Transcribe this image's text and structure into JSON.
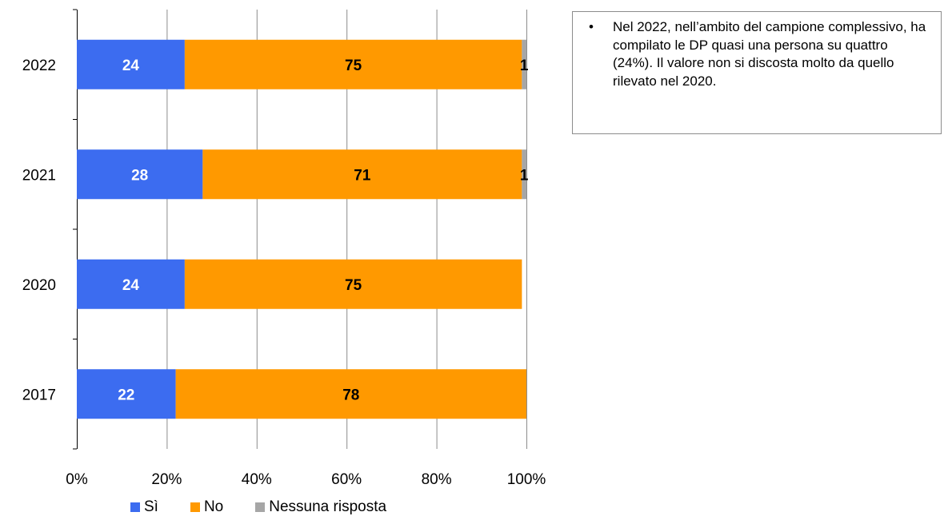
{
  "chart_data": {
    "type": "bar",
    "orientation": "horizontal",
    "stacked": true,
    "categories": [
      "2022",
      "2021",
      "2020",
      "2017"
    ],
    "series": [
      {
        "name": "Sì",
        "values": [
          24,
          28,
          24,
          22
        ],
        "labels": [
          "24",
          "28",
          "24",
          "22"
        ],
        "color": "#3c6cf0",
        "label_color": "#ffffff"
      },
      {
        "name": "No",
        "values": [
          75,
          71,
          75,
          78
        ],
        "labels": [
          "75",
          "71",
          "75",
          "78"
        ],
        "color": "#ff9900",
        "label_color": "#000000"
      },
      {
        "name": "Nessuna risposta",
        "values": [
          1,
          1,
          0,
          0
        ],
        "labels": [
          "1",
          "1",
          "",
          ""
        ],
        "color": "#a6a6a6",
        "label_color": "#000000"
      }
    ],
    "x_ticks": [
      "0%",
      "20%",
      "40%",
      "60%",
      "80%",
      "100%"
    ],
    "xlim": [
      0,
      100
    ],
    "grid": true,
    "legend_position": "bottom"
  },
  "legend": {
    "items": [
      {
        "label": "Sì",
        "color": "#3c6cf0"
      },
      {
        "label": "No",
        "color": "#ff9900"
      },
      {
        "label": "Nessuna risposta",
        "color": "#a6a6a6"
      }
    ]
  },
  "note": {
    "bullet": "•",
    "text": "Nel 2022, nell’ambito del campione complessivo, ha compilato le DP quasi una persona su quattro (24%). Il valore non si discosta molto da quello rilevato nel 2020."
  }
}
